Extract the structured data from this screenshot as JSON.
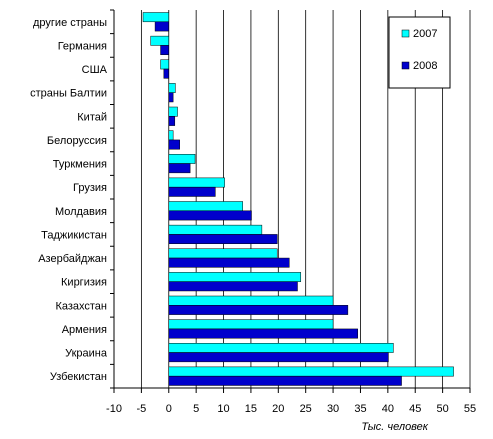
{
  "chart_data": {
    "type": "bar",
    "orientation": "horizontal",
    "categories": [
      "другие страны",
      "Германия",
      "США",
      "страны Балтии",
      "Китай",
      "Белоруссия",
      "Туркмения",
      "Грузия",
      "Молдавия",
      "Таджикистан",
      "Азербайджан",
      "Киргизия",
      "Казахстан",
      "Армения",
      "Украина",
      "Узбекистан"
    ],
    "series": [
      {
        "name": "2007",
        "color": "#00ffff",
        "values": [
          -4.7,
          -3.3,
          -1.5,
          1.2,
          1.6,
          0.8,
          4.8,
          10.2,
          13.5,
          17.0,
          19.8,
          24.1,
          30.0,
          30.0,
          41.0,
          52.0
        ]
      },
      {
        "name": "2008",
        "color": "#0000cc",
        "values": [
          -2.5,
          -1.5,
          -0.9,
          0.8,
          1.1,
          2.0,
          3.9,
          8.5,
          15.1,
          19.8,
          22.0,
          23.5,
          32.7,
          34.5,
          40.1,
          42.5
        ]
      }
    ],
    "xlim": [
      -10,
      55
    ],
    "xticks": [
      "-10",
      "-5",
      "0",
      "5",
      "10",
      "15",
      "20",
      "25",
      "30",
      "35",
      "40",
      "45",
      "50",
      "55"
    ],
    "xlabel": "Тыс. человек",
    "grid": true,
    "legend_position": "top-right"
  }
}
